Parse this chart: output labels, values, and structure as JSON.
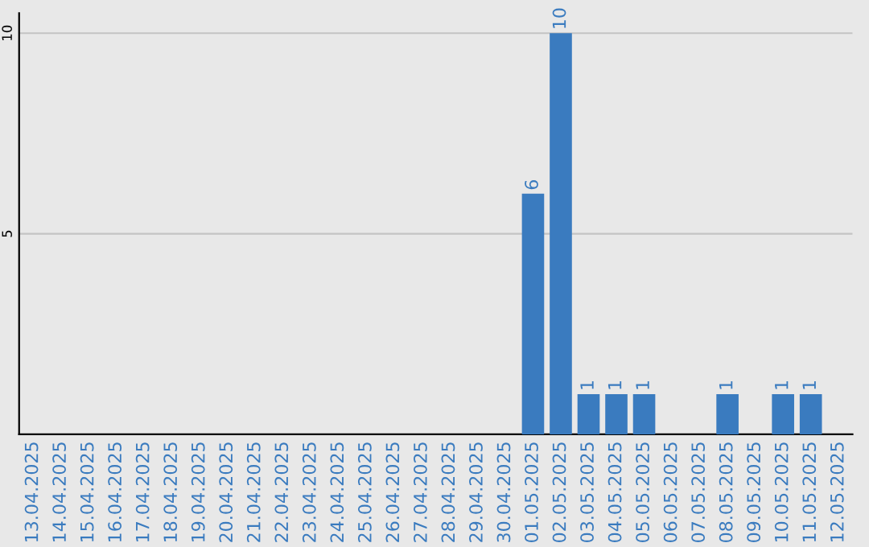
{
  "chart_data": {
    "type": "bar",
    "categories": [
      "13.04.2025",
      "14.04.2025",
      "15.04.2025",
      "16.04.2025",
      "17.04.2025",
      "18.04.2025",
      "19.04.2025",
      "20.04.2025",
      "21.04.2025",
      "22.04.2025",
      "23.04.2025",
      "24.04.2025",
      "25.04.2025",
      "26.04.2025",
      "27.04.2025",
      "28.04.2025",
      "29.04.2025",
      "30.04.2025",
      "01.05.2025",
      "02.05.2025",
      "03.05.2025",
      "04.05.2025",
      "05.05.2025",
      "06.05.2025",
      "07.05.2025",
      "08.05.2025",
      "09.05.2025",
      "10.05.2025",
      "11.05.2025",
      "12.05.2025"
    ],
    "values": [
      0,
      0,
      0,
      0,
      0,
      0,
      0,
      0,
      0,
      0,
      0,
      0,
      0,
      0,
      0,
      0,
      0,
      0,
      6,
      10,
      1,
      1,
      1,
      0,
      0,
      1,
      0,
      1,
      1,
      0
    ],
    "value_labels": [
      null,
      null,
      null,
      null,
      null,
      null,
      null,
      null,
      null,
      null,
      null,
      null,
      null,
      null,
      null,
      null,
      null,
      null,
      "6",
      "10",
      "1",
      "1",
      "1",
      null,
      null,
      "1",
      null,
      "1",
      "1",
      null
    ],
    "color": "#3a7bbf",
    "ylim": [
      0,
      10.5
    ],
    "yticks": [
      5,
      10
    ],
    "grid": "y"
  }
}
